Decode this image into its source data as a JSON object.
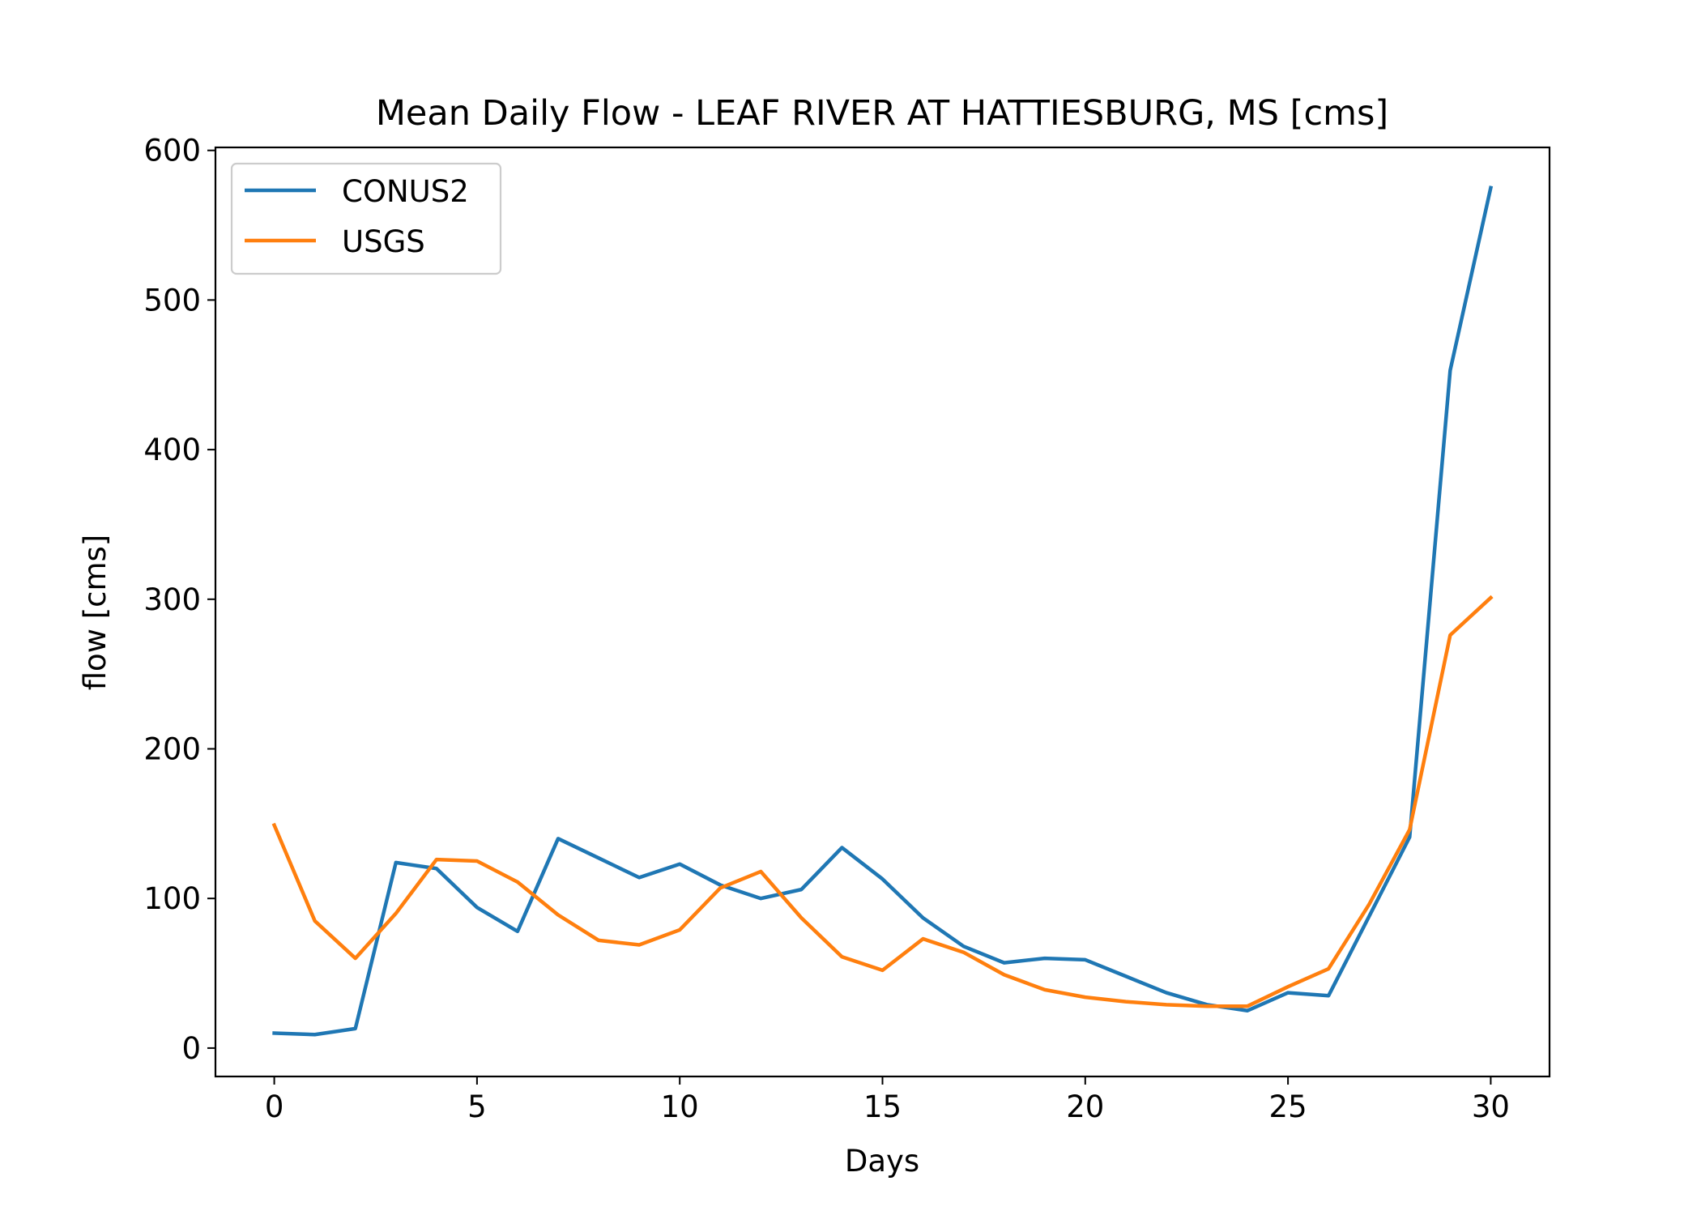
{
  "chart_data": {
    "type": "line",
    "title": "Mean Daily Flow - LEAF RIVER AT HATTIESBURG, MS [cms]",
    "xlabel": "Days",
    "ylabel": "flow [cms]",
    "xlim": [
      -1.45,
      31.45
    ],
    "ylim": [
      -19,
      602
    ],
    "xticks": [
      0,
      5,
      10,
      15,
      20,
      25,
      30
    ],
    "yticks": [
      0,
      100,
      200,
      300,
      400,
      500,
      600
    ],
    "x": [
      0,
      1,
      2,
      3,
      4,
      5,
      6,
      7,
      8,
      9,
      10,
      11,
      12,
      13,
      14,
      15,
      16,
      17,
      18,
      19,
      20,
      21,
      22,
      23,
      24,
      25,
      26,
      27,
      28,
      29,
      30
    ],
    "grid": false,
    "legend": "upper-left",
    "series": [
      {
        "name": "CONUS2",
        "color": "#1f77b4",
        "values": [
          10,
          9,
          13,
          124,
          120,
          94,
          78,
          140,
          127,
          114,
          123,
          109,
          100,
          106,
          134,
          113,
          87,
          68,
          57,
          60,
          59,
          48,
          37,
          29,
          25,
          37,
          35,
          88,
          141,
          453,
          575
        ]
      },
      {
        "name": "USGS",
        "color": "#ff7f0e",
        "values": [
          149,
          85,
          60,
          90,
          126,
          125,
          111,
          89,
          72,
          69,
          79,
          107,
          118,
          87,
          61,
          52,
          73,
          64,
          49,
          39,
          34,
          31,
          29,
          28,
          28,
          41,
          53,
          96,
          146,
          276,
          301
        ]
      }
    ]
  }
}
